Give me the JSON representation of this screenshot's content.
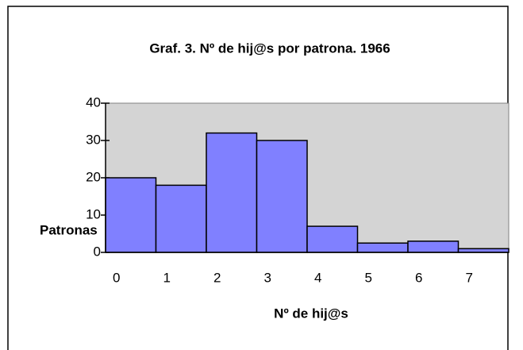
{
  "chart_data": {
    "type": "bar",
    "title": "Graf. 3. Nº de hij@s por patrona. 1966",
    "x_label": "Nº de hij@s",
    "y_label": "Patronas",
    "categories": [
      "0",
      "1",
      "2",
      "3",
      "4",
      "5",
      "6",
      "7"
    ],
    "values": [
      20,
      18,
      32,
      30,
      7,
      2.5,
      3,
      1
    ],
    "color": "#8080ff",
    "plot_background": "#d4d4d4",
    "ylim": [
      0,
      40
    ],
    "yticks": [
      0,
      10,
      20,
      30,
      40
    ],
    "grid": false
  }
}
